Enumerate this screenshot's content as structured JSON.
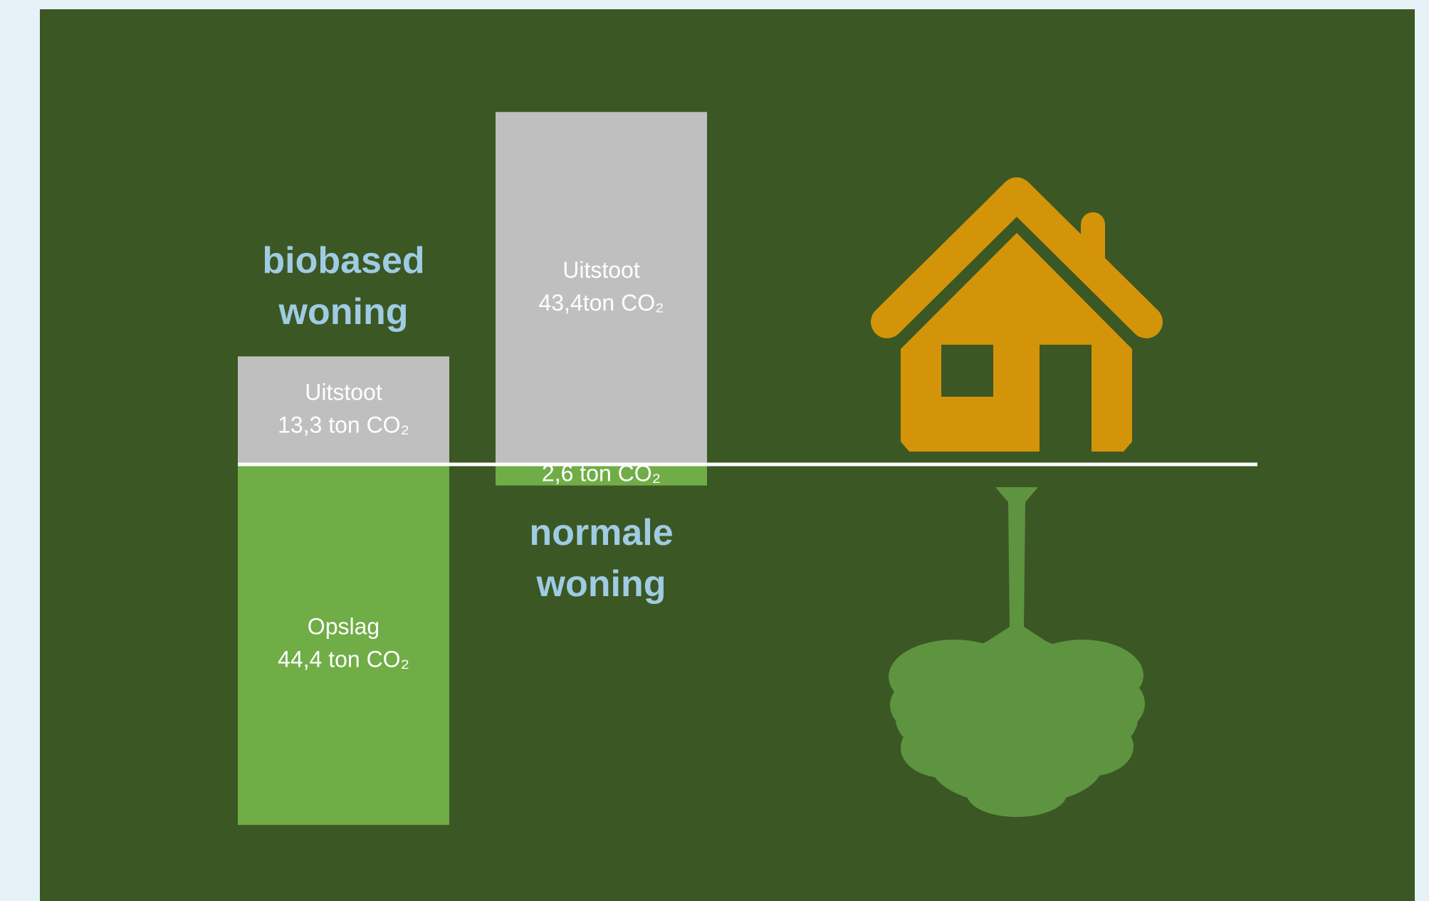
{
  "chart_data": {
    "type": "bar",
    "categories": [
      "biobased woning",
      "normale woning"
    ],
    "series": [
      {
        "name": "Uitstoot",
        "color": "#bfbfbf",
        "values": [
          13.3,
          43.4
        ],
        "value_labels": [
          "13,3 ton CO₂",
          "43,4ton CO₂"
        ]
      },
      {
        "name": "Opslag",
        "color": "#70ad47",
        "values": [
          -44.4,
          -2.6
        ],
        "value_labels": [
          "44,4 ton CO₂",
          "2,6 ton CO₂"
        ]
      }
    ],
    "ylim": [
      -50,
      50
    ]
  }
}
